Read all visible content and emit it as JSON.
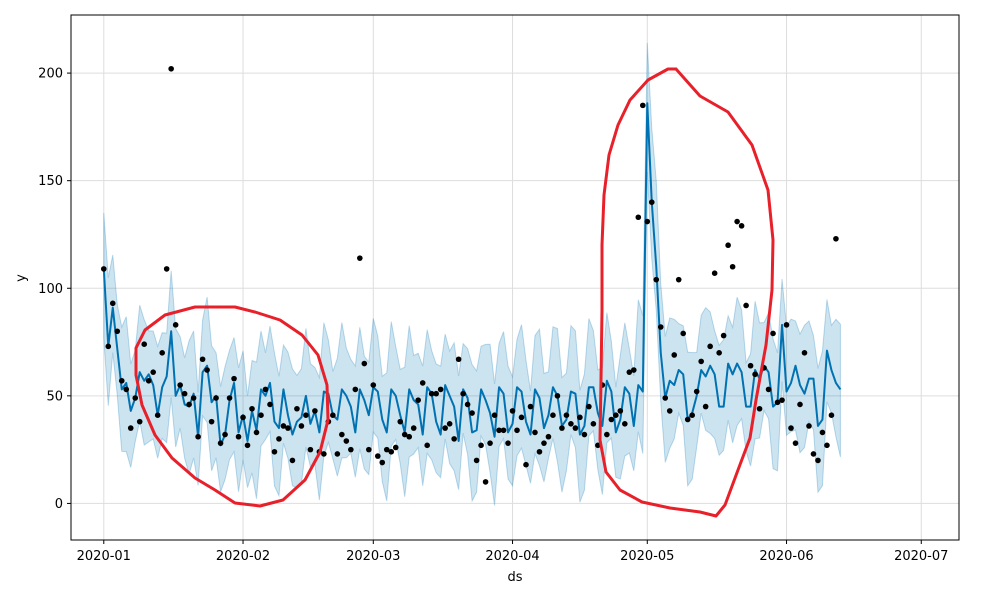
{
  "chart_data": {
    "type": "line",
    "title": "",
    "xlabel": "ds",
    "ylabel": "y",
    "x_start": "2020-01-01",
    "x_range_days": [
      -7.3,
      190.4
    ],
    "ylim": [
      -17,
      227
    ],
    "grid": true,
    "x_tick_days": [
      0,
      31,
      60,
      91,
      121,
      152,
      182
    ],
    "x_tick_labels": [
      "2020-01",
      "2020-02",
      "2020-03",
      "2020-04",
      "2020-05",
      "2020-06",
      "2020-07"
    ],
    "y_ticks": [
      0,
      50,
      100,
      150,
      200
    ],
    "y_tick_labels": [
      "0",
      "50",
      "100",
      "150",
      "200"
    ],
    "colors": {
      "forecast": "#0072B2",
      "interval": "#0072B2",
      "observed": "#000000",
      "annotation": "#e8202a",
      "grid": "#dddddd"
    },
    "observed": {
      "name": "actual",
      "x_days": [
        0,
        1,
        2,
        3,
        4,
        5,
        6,
        7,
        8,
        9,
        10,
        11,
        12,
        13,
        14,
        15,
        16,
        17,
        18,
        19,
        20,
        21,
        22,
        23,
        24,
        25,
        26,
        27,
        28,
        29,
        30,
        31,
        32,
        33,
        34,
        35,
        36,
        37,
        38,
        39,
        40,
        41,
        42,
        43,
        44,
        45,
        46,
        47,
        48,
        49,
        50,
        51,
        52,
        53,
        54,
        55,
        56,
        57,
        58,
        59,
        60,
        61,
        62,
        63,
        64,
        65,
        66,
        67,
        68,
        69,
        70,
        71,
        72,
        73,
        74,
        75,
        76,
        77,
        78,
        79,
        80,
        81,
        82,
        83,
        84,
        85,
        86,
        87,
        88,
        89,
        90,
        91,
        92,
        93,
        94,
        95,
        96,
        97,
        98,
        99,
        100,
        101,
        102,
        103,
        104,
        105,
        106,
        107,
        108,
        109,
        110,
        111,
        112,
        113,
        114,
        115,
        116,
        117,
        118,
        119,
        120,
        121,
        122,
        123,
        124,
        125,
        126,
        127,
        128,
        129,
        130,
        131,
        132,
        133,
        134,
        135,
        136,
        137,
        138,
        139,
        140,
        141,
        142,
        143,
        144,
        145,
        146,
        147,
        148,
        149,
        150,
        151,
        152,
        153,
        154,
        155,
        156,
        157,
        158,
        159,
        160,
        161,
        162,
        163
      ],
      "y": [
        109,
        73,
        93,
        80,
        57,
        53,
        35,
        49,
        38,
        74,
        57,
        61,
        41,
        70,
        109,
        202,
        83,
        55,
        51,
        46,
        49,
        31,
        67,
        62,
        38,
        49,
        28,
        32,
        49,
        58,
        31,
        40,
        27,
        44,
        33,
        41,
        53,
        46,
        24,
        30,
        36,
        35,
        20,
        44,
        36,
        41,
        25,
        43,
        24,
        23,
        38,
        41,
        23,
        32,
        29,
        25,
        53,
        114,
        65,
        25,
        55,
        22,
        19,
        25,
        24,
        26,
        38,
        32,
        31,
        35,
        48,
        56,
        27,
        51,
        51,
        53,
        35,
        37,
        30,
        67,
        51,
        46,
        42,
        20,
        27,
        10,
        28,
        41,
        34,
        34,
        28,
        43,
        34,
        40,
        18,
        45,
        33,
        24,
        28,
        31,
        41,
        50,
        35,
        41,
        37,
        35,
        40,
        32,
        45,
        37,
        27,
        55,
        32,
        39,
        41,
        43,
        37,
        61,
        62,
        133,
        185,
        131,
        140,
        104,
        82,
        49,
        43,
        69,
        104,
        79,
        39,
        41,
        52,
        66,
        45,
        73,
        107,
        70,
        78,
        120,
        110,
        131,
        129,
        92,
        64,
        60,
        44,
        63,
        53,
        79,
        47,
        48,
        83,
        35,
        28,
        46,
        70,
        36,
        23,
        20,
        33,
        27,
        41,
        123
      ]
    },
    "forecast_line": {
      "name": "yhat",
      "y": [
        109,
        73,
        91,
        72,
        53,
        56,
        43,
        49,
        61,
        57,
        60,
        55,
        41,
        54,
        59,
        80,
        50,
        55,
        46,
        45,
        51,
        31,
        61,
        64,
        47,
        50,
        27,
        32,
        48,
        56,
        33,
        41,
        29,
        43,
        34,
        53,
        50,
        56,
        38,
        35,
        53,
        41,
        32,
        38,
        40,
        50,
        37,
        43,
        33,
        52,
        51,
        41,
        39,
        53,
        50,
        45,
        33,
        53,
        48,
        41,
        54,
        52,
        39,
        33,
        53,
        50,
        41,
        33,
        53,
        48,
        46,
        32,
        54,
        51,
        38,
        32,
        55,
        50,
        45,
        29,
        53,
        49,
        33,
        34,
        53,
        48,
        42,
        31,
        54,
        51,
        33,
        37,
        54,
        52,
        38,
        32,
        53,
        49,
        35,
        41,
        54,
        50,
        36,
        39,
        52,
        51,
        32,
        36,
        54,
        54,
        42,
        36,
        57,
        52,
        33,
        39,
        54,
        51,
        36,
        55,
        52,
        186,
        140,
        110,
        70,
        49,
        57,
        55,
        62,
        60,
        39,
        42,
        50,
        62,
        59,
        64,
        60,
        45,
        45,
        65,
        60,
        65,
        61,
        45,
        45,
        62,
        58,
        64,
        61,
        45,
        47,
        83,
        52,
        56,
        64,
        55,
        51,
        58,
        58,
        36,
        39,
        71,
        62,
        56,
        53
      ]
    },
    "interval": {
      "name": "yhat_lower / yhat_upper",
      "band_half_width": 26
    },
    "annotations": [
      {
        "shape": "hand-drawn loop",
        "start_date": "2020-01-08",
        "end_date": "2020-02-17"
      },
      {
        "shape": "hand-drawn loop",
        "start_date": "2020-04-15",
        "end_date": "2020-05-22"
      }
    ]
  }
}
